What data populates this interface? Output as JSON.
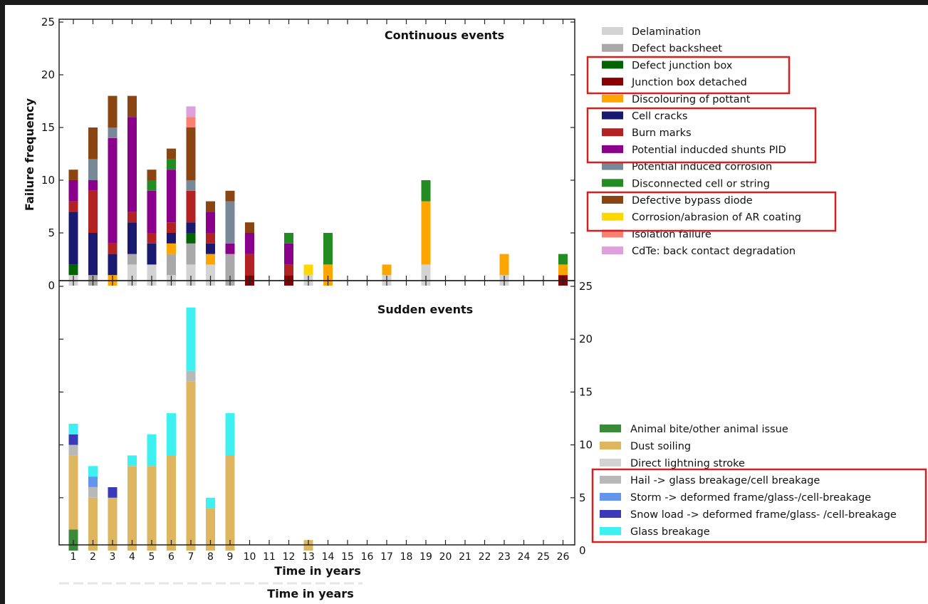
{
  "chart_data": [
    {
      "type": "bar",
      "stacked": true,
      "title": "Continuous events",
      "ylabel": "Failure frequency",
      "xlabel": "",
      "x": [
        1,
        2,
        3,
        4,
        5,
        6,
        7,
        8,
        9,
        10,
        11,
        12,
        13,
        14,
        15,
        16,
        17,
        18,
        19,
        20,
        21,
        22,
        23,
        24,
        25,
        26
      ],
      "ylim": [
        0,
        25
      ],
      "yticks": [
        0,
        5,
        10,
        15,
        20,
        25
      ],
      "legend_position": "right",
      "series": [
        {
          "name": "Delamination",
          "color": "#d3d3d3",
          "values": [
            1,
            0,
            0,
            2,
            2,
            1,
            2,
            2,
            0,
            0,
            0,
            0,
            1,
            0,
            0,
            0,
            1,
            0,
            2,
            0,
            0,
            0,
            1,
            0,
            0,
            0
          ]
        },
        {
          "name": "Defect backsheet",
          "color": "#a9a9a9",
          "values": [
            0,
            1,
            0,
            1,
            0,
            2,
            2,
            0,
            3,
            0,
            0,
            0,
            0,
            0,
            0,
            0,
            0,
            0,
            0,
            0,
            0,
            0,
            0,
            0,
            0,
            0
          ]
        },
        {
          "name": "Defect junction box",
          "color": "#006400",
          "values": [
            1,
            0,
            0,
            0,
            0,
            0,
            1,
            0,
            0,
            0,
            0,
            0,
            0,
            0,
            0,
            0,
            0,
            0,
            0,
            0,
            0,
            0,
            0,
            0,
            0,
            0
          ]
        },
        {
          "name": "Junction box detached",
          "color": "#8b0000",
          "values": [
            0,
            0,
            0,
            0,
            0,
            0,
            0,
            0,
            0,
            1,
            0,
            1,
            0,
            0,
            0,
            0,
            0,
            0,
            0,
            0,
            0,
            0,
            0,
            0,
            0,
            1
          ]
        },
        {
          "name": "Discolouring of pottant",
          "color": "#ffa500",
          "values": [
            0,
            0,
            1,
            0,
            0,
            1,
            0,
            1,
            0,
            0,
            0,
            0,
            0,
            2,
            0,
            0,
            1,
            0,
            6,
            0,
            0,
            0,
            2,
            0,
            0,
            1
          ]
        },
        {
          "name": "Cell cracks",
          "color": "#191970",
          "values": [
            5,
            4,
            2,
            3,
            2,
            1,
            1,
            1,
            0,
            0,
            0,
            0,
            0,
            0,
            0,
            0,
            0,
            0,
            0,
            0,
            0,
            0,
            0,
            0,
            0,
            0
          ]
        },
        {
          "name": "Burn marks",
          "color": "#b22222",
          "values": [
            1,
            4,
            1,
            1,
            1,
            1,
            3,
            1,
            0,
            2,
            0,
            1,
            0,
            0,
            0,
            0,
            0,
            0,
            0,
            0,
            0,
            0,
            0,
            0,
            0,
            0
          ]
        },
        {
          "name": "Potential inducded shunts PID",
          "color": "#8b008b",
          "values": [
            2,
            1,
            10,
            9,
            4,
            5,
            0,
            2,
            1,
            2,
            0,
            2,
            0,
            0,
            0,
            0,
            0,
            0,
            0,
            0,
            0,
            0,
            0,
            0,
            0,
            0
          ]
        },
        {
          "name": "Potential induced corrosion",
          "color": "#778899",
          "values": [
            0,
            2,
            1,
            0,
            0,
            0,
            1,
            0,
            4,
            0,
            0,
            0,
            0,
            0,
            0,
            0,
            0,
            0,
            0,
            0,
            0,
            0,
            0,
            0,
            0,
            0
          ]
        },
        {
          "name": "Disconnected cell or string",
          "color": "#228b22",
          "values": [
            0,
            0,
            0,
            0,
            1,
            1,
            0,
            0,
            0,
            0,
            0,
            1,
            0,
            3,
            0,
            0,
            0,
            0,
            2,
            0,
            0,
            0,
            0,
            0,
            0,
            1
          ]
        },
        {
          "name": "Defective bypass diode",
          "color": "#8b4513",
          "values": [
            1,
            3,
            3,
            2,
            1,
            1,
            5,
            1,
            1,
            1,
            0,
            0,
            0,
            0,
            0,
            0,
            0,
            0,
            0,
            0,
            0,
            0,
            0,
            0,
            0,
            0
          ]
        },
        {
          "name": "Corrosion/abrasion of AR coating",
          "color": "#ffd700",
          "values": [
            0,
            0,
            0,
            0,
            0,
            0,
            0,
            0,
            0,
            0,
            0,
            0,
            1,
            0,
            0,
            0,
            0,
            0,
            0,
            0,
            0,
            0,
            0,
            0,
            0,
            0
          ]
        },
        {
          "name": "Isolation failure",
          "color": "#fa8072",
          "values": [
            0,
            0,
            0,
            0,
            0,
            0,
            1,
            0,
            0,
            0,
            0,
            0,
            0,
            0,
            0,
            0,
            0,
            0,
            0,
            0,
            0,
            0,
            0,
            0,
            0,
            0
          ]
        },
        {
          "name": "CdTe: back contact degradation",
          "color": "#dda0dd",
          "values": [
            0,
            0,
            0,
            0,
            0,
            0,
            1,
            0,
            0,
            0,
            0,
            0,
            0,
            0,
            0,
            0,
            0,
            0,
            0,
            0,
            0,
            0,
            0,
            0,
            0,
            0
          ]
        }
      ],
      "highlighted_groups": [
        [
          "Defect junction box",
          "Junction box detached"
        ],
        [
          "Cell cracks",
          "Burn marks",
          "Potential inducded shunts PID"
        ],
        [
          "Defective bypass diode",
          "Corrosion/abrasion of AR coating"
        ]
      ]
    },
    {
      "type": "bar",
      "stacked": true,
      "title": "Sudden events",
      "xlabel": "Time in years",
      "ylabel": "",
      "x": [
        1,
        2,
        3,
        4,
        5,
        6,
        7,
        8,
        9,
        10,
        11,
        12,
        13,
        14,
        15,
        16,
        17,
        18,
        19,
        20,
        21,
        22,
        23,
        24,
        25,
        26
      ],
      "xticks": [
        "1",
        "2",
        "3",
        "4",
        "5",
        "6",
        "7",
        "8",
        "9",
        "10",
        "11",
        "12",
        "13",
        "14",
        "15",
        "16",
        "17",
        "18",
        "19",
        "20",
        "21",
        "22",
        "23",
        "24",
        "25",
        "26"
      ],
      "ylim": [
        0,
        25
      ],
      "yticks": [
        0,
        5,
        10,
        15,
        20,
        25
      ],
      "yaxis_side": "right",
      "legend_position": "right",
      "series": [
        {
          "name": "Animal bite/other animal issue",
          "color": "#3a8a3a",
          "values": [
            2,
            0,
            0,
            0,
            0,
            0,
            0,
            0,
            0,
            0,
            0,
            0,
            0,
            0,
            0,
            0,
            0,
            0,
            0,
            0,
            0,
            0,
            0,
            0,
            0,
            0
          ]
        },
        {
          "name": "Dust soiling",
          "color": "#deb660",
          "values": [
            7,
            5,
            5,
            8,
            8,
            9,
            16,
            4,
            9,
            0,
            0,
            0,
            1,
            0,
            0,
            0,
            0,
            0,
            0,
            0,
            0,
            0,
            0,
            0,
            0,
            0
          ]
        },
        {
          "name": "Direct lightning stroke",
          "color": "#d3d3d3",
          "values": [
            0,
            0,
            0,
            0,
            0,
            0,
            0,
            0,
            0,
            0,
            0,
            0,
            0,
            0,
            0,
            0,
            0,
            0,
            0,
            0,
            0,
            0,
            0,
            0,
            0,
            0
          ]
        },
        {
          "name": "Hail -> glass breakage/cell breakage",
          "color": "#b8b8b8",
          "values": [
            1,
            1,
            0,
            0,
            0,
            0,
            1,
            0,
            0,
            0,
            0,
            0,
            0,
            0,
            0,
            0,
            0,
            0,
            0,
            0,
            0,
            0,
            0,
            0,
            0,
            0
          ]
        },
        {
          "name": "Storm -> deformed frame/glass-/cell-breakage",
          "color": "#6495ed",
          "values": [
            0,
            1,
            0,
            0,
            0,
            0,
            0,
            0,
            0,
            0,
            0,
            0,
            0,
            0,
            0,
            0,
            0,
            0,
            0,
            0,
            0,
            0,
            0,
            0,
            0,
            0
          ]
        },
        {
          "name": "Snow load -> deformed frame/glass- /cell-breakage",
          "color": "#3a3ab8",
          "values": [
            1,
            0,
            1,
            0,
            0,
            0,
            0,
            0,
            0,
            0,
            0,
            0,
            0,
            0,
            0,
            0,
            0,
            0,
            0,
            0,
            0,
            0,
            0,
            0,
            0,
            0
          ]
        },
        {
          "name": "Glass breakage",
          "color": "#3ff0f0",
          "values": [
            1,
            1,
            0,
            1,
            3,
            4,
            6,
            1,
            4,
            0,
            0,
            0,
            0,
            0,
            0,
            0,
            0,
            0,
            0,
            0,
            0,
            0,
            0,
            0,
            0,
            0
          ]
        }
      ],
      "highlighted_groups": [
        [
          "Hail -> glass breakage/cell breakage",
          "Storm -> deformed frame/glass-/cell-breakage",
          "Snow load -> deformed frame/glass- /cell-breakage",
          "Glass breakage"
        ]
      ]
    }
  ],
  "figure": {
    "xlabel": "Time in years",
    "highlight_color": "#d42020"
  }
}
